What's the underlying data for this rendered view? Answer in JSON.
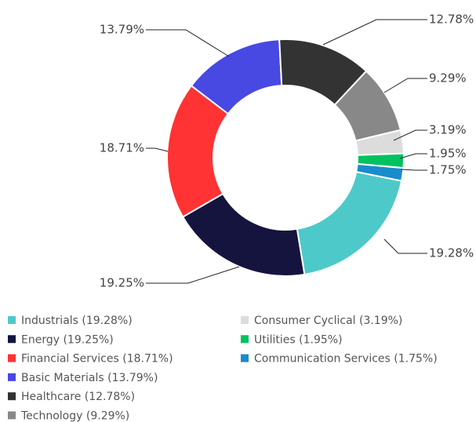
{
  "chart_data": {
    "type": "donut",
    "labels": [
      "Industrials (19.28%)",
      "Energy (19.25%)",
      "Financial Services (18.71%)",
      "Basic Materials (13.79%)",
      "Healthcare (12.78%)",
      "Technology (9.29%)",
      "Consumer Cyclical (3.19%)",
      "Utilities (1.95%)",
      "Communication Services (1.75%)"
    ],
    "values": [
      19.28,
      19.25,
      18.71,
      13.79,
      12.78,
      9.29,
      3.19,
      1.95,
      1.75
    ],
    "value_labels": [
      "19.28%",
      "19.25%",
      "18.71%",
      "13.79%",
      "12.78%",
      "9.29%",
      "3.19%",
      "1.95%",
      "1.75%"
    ],
    "colors": [
      "#4ec9c9",
      "#15143f",
      "#ff3333",
      "#4848e3",
      "#333333",
      "#888888",
      "#dcdcdc",
      "#00c25f",
      "#1a8bcb"
    ]
  }
}
